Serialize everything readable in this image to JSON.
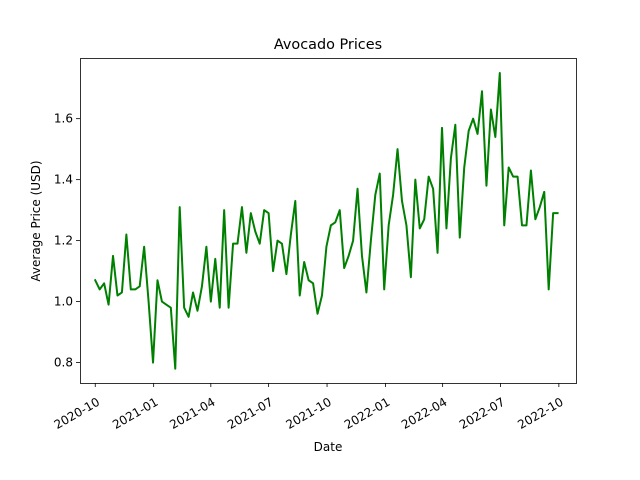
{
  "chart_data": {
    "type": "line",
    "title": "Avocado Prices",
    "xlabel": "Date",
    "ylabel": "Average Price (USD)",
    "x_ticks": [
      "2020-10",
      "2021-01",
      "2021-04",
      "2021-07",
      "2021-10",
      "2022-01",
      "2022-04",
      "2022-07",
      "2022-10"
    ],
    "y_ticks": [
      "0.8",
      "1.0",
      "1.2",
      "1.4",
      "1.6"
    ],
    "ylim": [
      0.733,
      1.799
    ],
    "xlim": [
      "2020-09-07",
      "2022-10-28"
    ],
    "grid": false,
    "series": [
      {
        "color": "#008000",
        "x": [
          "2020-10-01",
          "2020-10-08",
          "2020-10-15",
          "2020-10-22",
          "2020-10-29",
          "2020-11-05",
          "2020-11-12",
          "2020-11-19",
          "2020-11-26",
          "2020-12-03",
          "2020-12-10",
          "2020-12-17",
          "2020-12-24",
          "2020-12-31",
          "2021-01-07",
          "2021-01-14",
          "2021-01-21",
          "2021-01-28",
          "2021-02-04",
          "2021-02-11",
          "2021-02-18",
          "2021-02-25",
          "2021-03-04",
          "2021-03-11",
          "2021-03-18",
          "2021-03-25",
          "2021-04-01",
          "2021-04-08",
          "2021-04-15",
          "2021-04-22",
          "2021-04-29",
          "2021-05-06",
          "2021-05-13",
          "2021-05-20",
          "2021-05-27",
          "2021-06-03",
          "2021-06-10",
          "2021-06-17",
          "2021-06-24",
          "2021-07-01",
          "2021-07-08",
          "2021-07-15",
          "2021-07-22",
          "2021-07-29",
          "2021-08-05",
          "2021-08-12",
          "2021-08-19",
          "2021-08-26",
          "2021-09-02",
          "2021-09-09",
          "2021-09-16",
          "2021-09-23",
          "2021-09-30",
          "2021-10-07",
          "2021-10-14",
          "2021-10-21",
          "2021-10-28",
          "2021-11-04",
          "2021-11-11",
          "2021-11-18",
          "2021-11-25",
          "2021-12-02",
          "2021-12-09",
          "2021-12-16",
          "2021-12-23",
          "2021-12-30",
          "2022-01-06",
          "2022-01-13",
          "2022-01-20",
          "2022-01-27",
          "2022-02-03",
          "2022-02-10",
          "2022-02-17",
          "2022-02-24",
          "2022-03-03",
          "2022-03-10",
          "2022-03-17",
          "2022-03-24",
          "2022-03-31",
          "2022-04-07",
          "2022-04-14",
          "2022-04-21",
          "2022-04-28",
          "2022-05-05",
          "2022-05-12",
          "2022-05-19",
          "2022-05-26",
          "2022-06-02",
          "2022-06-09",
          "2022-06-16",
          "2022-06-23",
          "2022-06-30",
          "2022-07-07",
          "2022-07-14",
          "2022-07-21",
          "2022-07-28",
          "2022-08-04",
          "2022-08-11",
          "2022-08-18",
          "2022-08-25",
          "2022-09-01",
          "2022-09-08",
          "2022-09-15",
          "2022-09-22",
          "2022-09-29"
        ],
        "y": [
          1.07,
          1.04,
          1.06,
          0.99,
          1.15,
          1.02,
          1.03,
          1.22,
          1.04,
          1.04,
          1.05,
          1.18,
          1.0,
          0.8,
          1.07,
          1.0,
          0.99,
          0.98,
          0.78,
          1.31,
          0.98,
          0.95,
          1.03,
          0.97,
          1.05,
          1.18,
          1.0,
          1.14,
          0.98,
          1.3,
          0.98,
          1.19,
          1.19,
          1.31,
          1.16,
          1.29,
          1.23,
          1.19,
          1.3,
          1.29,
          1.1,
          1.2,
          1.19,
          1.09,
          1.22,
          1.33,
          1.02,
          1.13,
          1.07,
          1.06,
          0.96,
          1.02,
          1.18,
          1.25,
          1.26,
          1.3,
          1.11,
          1.15,
          1.2,
          1.37,
          1.15,
          1.03,
          1.2,
          1.35,
          1.42,
          1.04,
          1.25,
          1.35,
          1.5,
          1.33,
          1.25,
          1.08,
          1.4,
          1.24,
          1.27,
          1.41,
          1.37,
          1.16,
          1.57,
          1.24,
          1.47,
          1.58,
          1.21,
          1.44,
          1.56,
          1.6,
          1.55,
          1.69,
          1.38,
          1.63,
          1.54,
          1.75,
          1.25,
          1.44,
          1.41,
          1.41,
          1.25,
          1.25,
          1.43,
          1.27,
          1.31,
          1.36,
          1.04,
          1.29,
          1.29
        ]
      }
    ]
  }
}
